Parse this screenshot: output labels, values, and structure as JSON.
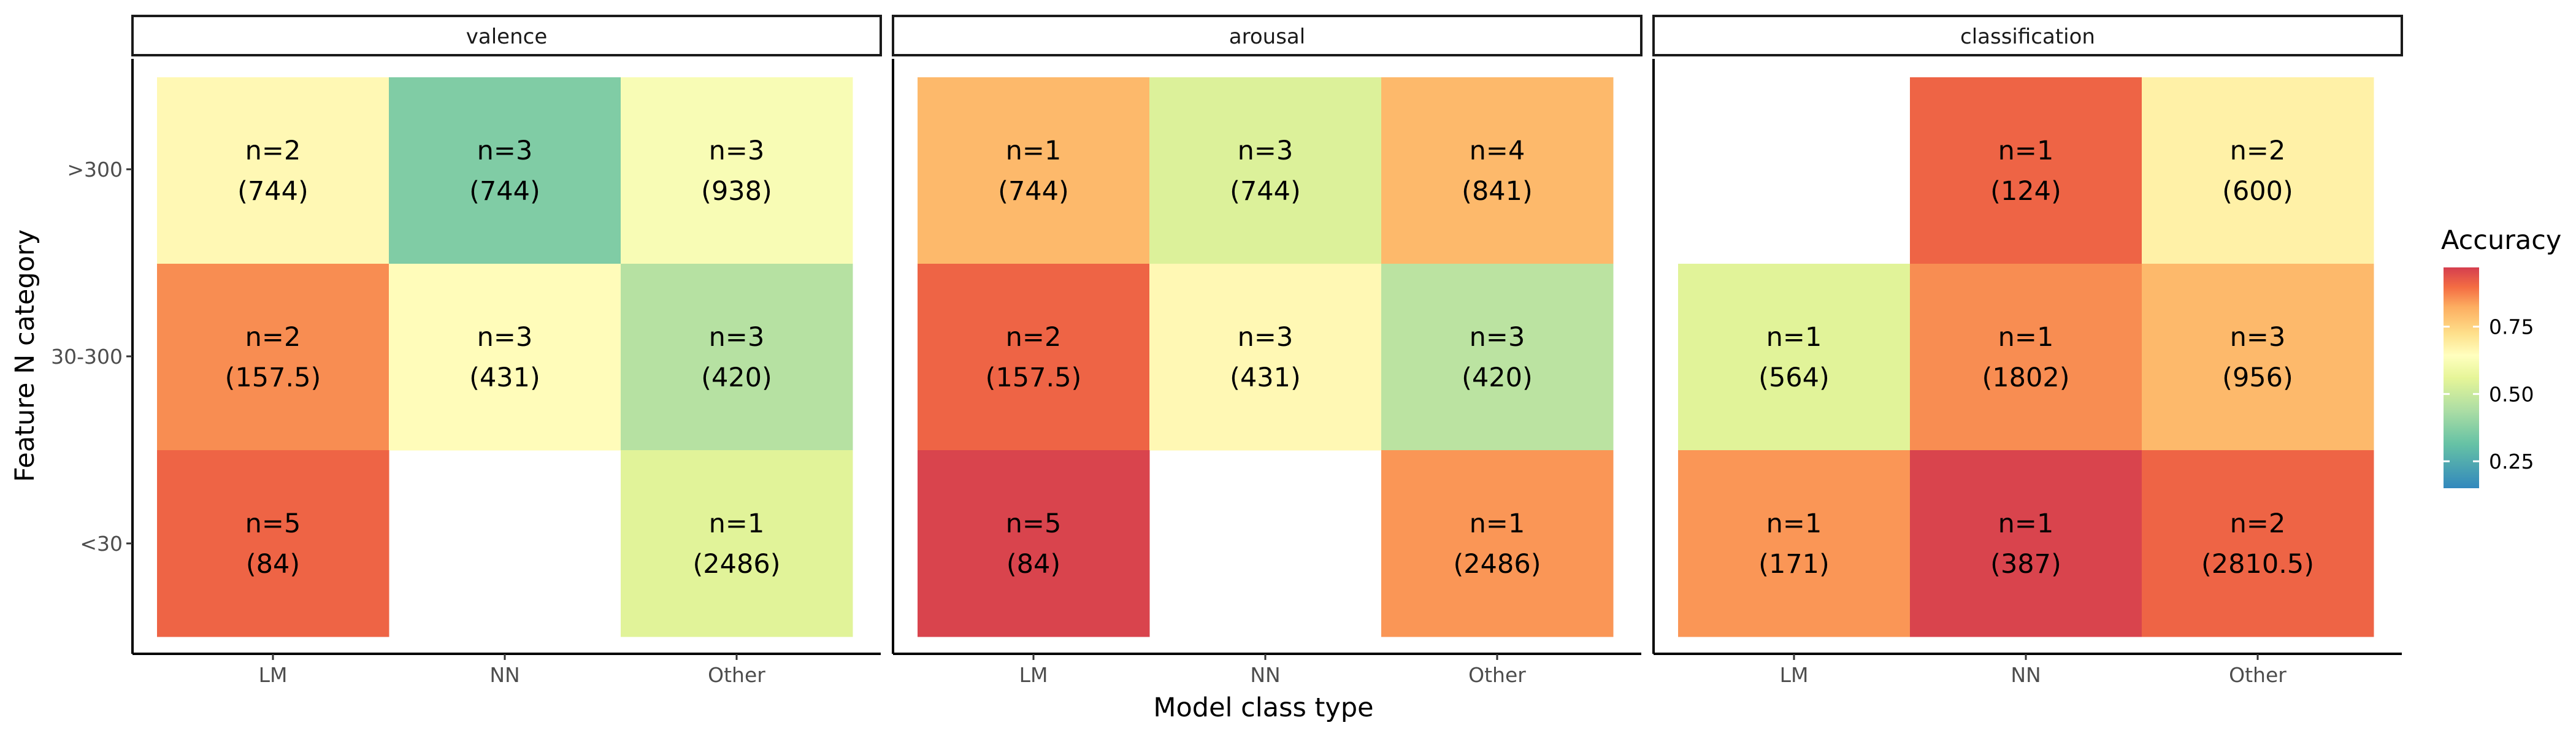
{
  "chart_data": {
    "type": "heatmap",
    "xlabel": "Model class type",
    "ylabel": "Feature N category",
    "x_categories": [
      "LM",
      "NN",
      "Other"
    ],
    "y_categories": [
      ">300",
      "30-300",
      "<30"
    ],
    "legend": {
      "title": "Accuracy",
      "ticks": [
        "0.75",
        "0.50",
        "0.25"
      ],
      "tick_values": [
        0.75,
        0.5,
        0.25
      ],
      "range": [
        0.15,
        0.97
      ],
      "placement": "right",
      "colormap": "Spectral (reversed)"
    },
    "grid": false,
    "panels": [
      {
        "title": "valence",
        "cells": [
          {
            "x": "LM",
            "y": ">300",
            "line1": "n=2",
            "line2": "(744)",
            "accuracy": 0.66
          },
          {
            "x": "NN",
            "y": ">300",
            "line1": "n=3",
            "line2": "(744)",
            "accuracy": 0.36
          },
          {
            "x": "Other",
            "y": ">300",
            "line1": "n=3",
            "line2": "(938)",
            "accuracy": 0.62
          },
          {
            "x": "LM",
            "y": "30-300",
            "line1": "n=2",
            "line2": "(157.5)",
            "accuracy": 0.86
          },
          {
            "x": "NN",
            "y": "30-300",
            "line1": "n=3",
            "line2": "(431)",
            "accuracy": 0.65
          },
          {
            "x": "Other",
            "y": "30-300",
            "line1": "n=3",
            "line2": "(420)",
            "accuracy": 0.46
          },
          {
            "x": "LM",
            "y": "<30",
            "line1": "n=5",
            "line2": "(84)",
            "accuracy": 0.91
          },
          {
            "x": "Other",
            "y": "<30",
            "line1": "n=1",
            "line2": "(2486)",
            "accuracy": 0.55
          }
        ]
      },
      {
        "title": "arousal",
        "cells": [
          {
            "x": "LM",
            "y": ">300",
            "line1": "n=1",
            "line2": "(744)",
            "accuracy": 0.8
          },
          {
            "x": "NN",
            "y": ">300",
            "line1": "n=3",
            "line2": "(744)",
            "accuracy": 0.54
          },
          {
            "x": "Other",
            "y": ">300",
            "line1": "n=4",
            "line2": "(841)",
            "accuracy": 0.8
          },
          {
            "x": "LM",
            "y": "30-300",
            "line1": "n=2",
            "line2": "(157.5)",
            "accuracy": 0.91
          },
          {
            "x": "NN",
            "y": "30-300",
            "line1": "n=3",
            "line2": "(431)",
            "accuracy": 0.66
          },
          {
            "x": "Other",
            "y": "30-300",
            "line1": "n=3",
            "line2": "(420)",
            "accuracy": 0.47
          },
          {
            "x": "LM",
            "y": "<30",
            "line1": "n=5",
            "line2": "(84)",
            "accuracy": 0.96
          },
          {
            "x": "Other",
            "y": "<30",
            "line1": "n=1",
            "line2": "(2486)",
            "accuracy": 0.85
          }
        ]
      },
      {
        "title": "classification",
        "cells": [
          {
            "x": "NN",
            "y": ">300",
            "line1": "n=1",
            "line2": "(124)",
            "accuracy": 0.91
          },
          {
            "x": "Other",
            "y": ">300",
            "line1": "n=2",
            "line2": "(600)",
            "accuracy": 0.68
          },
          {
            "x": "LM",
            "y": "30-300",
            "line1": "n=1",
            "line2": "(564)",
            "accuracy": 0.55
          },
          {
            "x": "NN",
            "y": "30-300",
            "line1": "n=1",
            "line2": "(1802)",
            "accuracy": 0.86
          },
          {
            "x": "Other",
            "y": "30-300",
            "line1": "n=3",
            "line2": "(956)",
            "accuracy": 0.8
          },
          {
            "x": "LM",
            "y": "<30",
            "line1": "n=1",
            "line2": "(171)",
            "accuracy": 0.85
          },
          {
            "x": "NN",
            "y": "<30",
            "line1": "n=1",
            "line2": "(387)",
            "accuracy": 0.96
          },
          {
            "x": "Other",
            "y": "<30",
            "line1": "n=2",
            "line2": "(2810.5)",
            "accuracy": 0.91
          }
        ]
      }
    ]
  }
}
